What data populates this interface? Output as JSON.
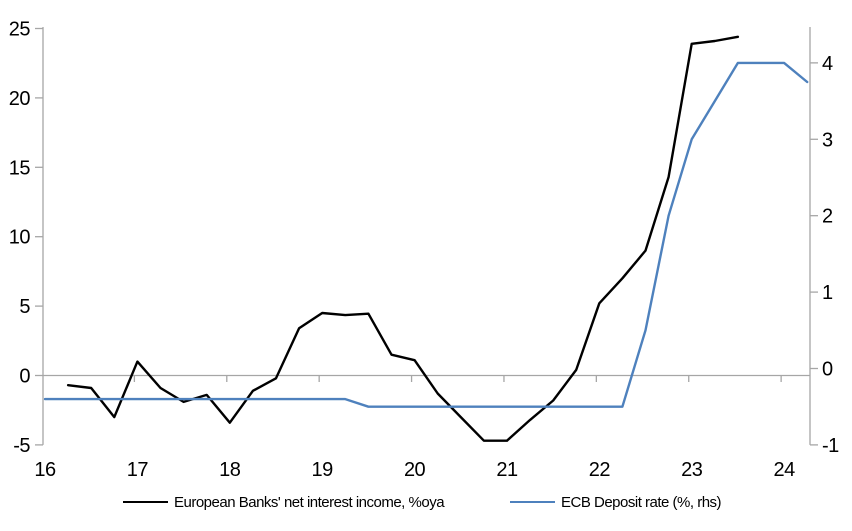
{
  "chart_data": {
    "type": "line",
    "title": "",
    "legend_position": "bottom",
    "background": "#ffffff",
    "axis_color": "#a6a6a6",
    "text_color": "#000000",
    "grid": "off",
    "x_axis": {
      "ticks": [
        16,
        17,
        18,
        19,
        20,
        21,
        22,
        23,
        24
      ],
      "range": [
        16,
        24.28
      ]
    },
    "left_axis": {
      "ticks": [
        -5,
        0,
        5,
        10,
        15,
        20,
        25
      ],
      "range": [
        -5,
        25
      ]
    },
    "right_axis": {
      "ticks": [
        -1,
        0,
        1,
        2,
        3,
        4
      ],
      "range": [
        -1,
        4.45
      ]
    },
    "series": [
      {
        "name": "European Banks' net interest income, %oya",
        "axis": "left",
        "color": "#000000",
        "x": [
          16.25,
          16.5,
          16.75,
          17,
          17.25,
          17.5,
          17.75,
          18,
          18.25,
          18.5,
          18.75,
          19,
          19.25,
          19.5,
          19.75,
          20,
          20.25,
          20.5,
          20.75,
          21,
          21.25,
          21.5,
          21.75,
          22,
          22.25,
          22.5,
          22.75,
          23,
          23.25,
          23.5
        ],
        "values": [
          -0.7,
          -0.9,
          -3.0,
          1.0,
          -0.9,
          -1.9,
          -1.4,
          -3.4,
          -1.1,
          -0.2,
          3.4,
          4.5,
          4.35,
          4.45,
          1.5,
          1.1,
          -1.3,
          -3.0,
          -4.7,
          -4.7,
          -3.2,
          -1.8,
          0.4,
          5.2,
          7.0,
          9.0,
          14.3,
          23.9,
          24.1,
          24.4
        ]
      },
      {
        "name": "ECB Deposit rate (%, rhs)",
        "axis": "right",
        "color": "#4e81bd",
        "x": [
          16,
          16.25,
          16.5,
          16.75,
          17,
          17.25,
          17.5,
          17.75,
          18,
          18.25,
          18.5,
          18.75,
          19,
          19.25,
          19.5,
          19.75,
          20,
          20.25,
          20.5,
          20.75,
          21,
          21.25,
          21.5,
          21.75,
          22,
          22.25,
          22.5,
          22.75,
          23,
          23.25,
          23.5,
          23.75,
          24,
          24.25
        ],
        "values": [
          -0.4,
          -0.4,
          -0.4,
          -0.4,
          -0.4,
          -0.4,
          -0.4,
          -0.4,
          -0.4,
          -0.4,
          -0.4,
          -0.4,
          -0.4,
          -0.4,
          -0.5,
          -0.5,
          -0.5,
          -0.5,
          -0.5,
          -0.5,
          -0.5,
          -0.5,
          -0.5,
          -0.5,
          -0.5,
          -0.5,
          0.5,
          2.0,
          3.0,
          3.5,
          4.0,
          4.0,
          4.0,
          3.75
        ]
      }
    ]
  },
  "legend": {
    "items": [
      {
        "label": "European Banks' net interest income, %oya"
      },
      {
        "label": "ECB Deposit rate (%, rhs)"
      }
    ]
  }
}
